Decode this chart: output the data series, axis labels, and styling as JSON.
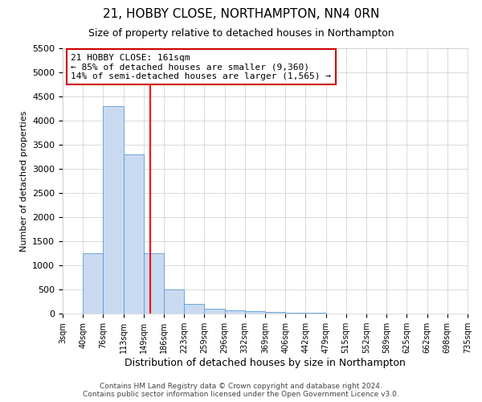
{
  "title": "21, HOBBY CLOSE, NORTHAMPTON, NN4 0RN",
  "subtitle": "Size of property relative to detached houses in Northampton",
  "xlabel": "Distribution of detached houses by size in Northampton",
  "ylabel": "Number of detached properties",
  "property_size": 161,
  "annotation_line1": "21 HOBBY CLOSE: 161sqm",
  "annotation_line2": "← 85% of detached houses are smaller (9,360)",
  "annotation_line3": "14% of semi-detached houses are larger (1,565) →",
  "footer_line1": "Contains HM Land Registry data © Crown copyright and database right 2024.",
  "footer_line2": "Contains public sector information licensed under the Open Government Licence v3.0.",
  "bin_edges": [
    3,
    40,
    76,
    113,
    149,
    186,
    223,
    259,
    296,
    332,
    369,
    406,
    442,
    479,
    515,
    552,
    589,
    625,
    662,
    698,
    735
  ],
  "bar_values": [
    0,
    1250,
    4300,
    3300,
    1250,
    500,
    200,
    100,
    70,
    50,
    30,
    20,
    10,
    5,
    3,
    2,
    1,
    1,
    0,
    0
  ],
  "bar_color": "#c9daf0",
  "bar_edge_color": "#5b9bd5",
  "red_line_x": 161,
  "ylim": [
    0,
    5500
  ],
  "yticks": [
    0,
    500,
    1000,
    1500,
    2000,
    2500,
    3000,
    3500,
    4000,
    4500,
    5000,
    5500
  ],
  "annotation_box_color": "#ffffff",
  "annotation_box_edge_color": "#cc0000",
  "grid_color": "#cccccc",
  "background_color": "#ffffff",
  "title_fontsize": 11,
  "subtitle_fontsize": 9,
  "ylabel_fontsize": 8,
  "xlabel_fontsize": 9,
  "tick_fontsize": 8,
  "annotation_fontsize": 8,
  "footer_fontsize": 6.5
}
